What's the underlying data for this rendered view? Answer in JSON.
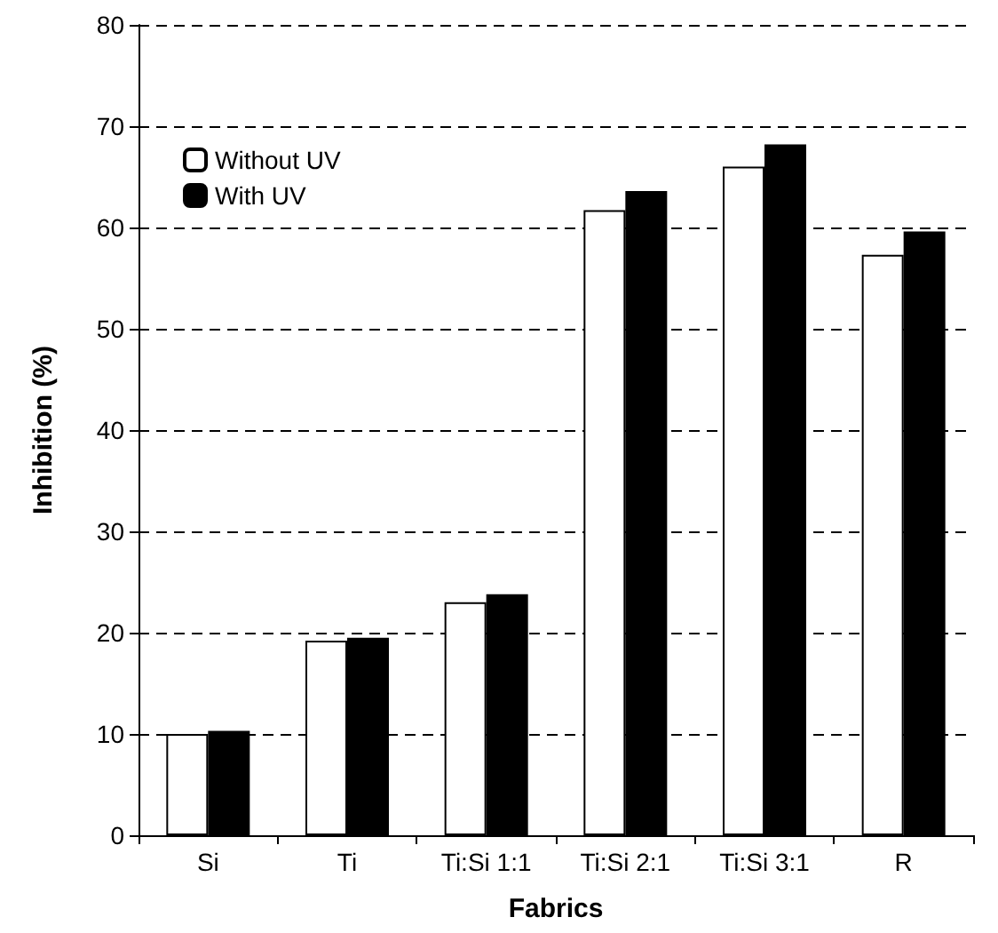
{
  "chart_data": {
    "type": "bar",
    "xlabel": "Fabrics",
    "ylabel": "Inhibition (%)",
    "categories": [
      "Si",
      "Ti",
      "Ti:Si 1:1",
      "Ti:Si 2:1",
      "Ti:Si 3:1",
      "R"
    ],
    "series": [
      {
        "name": "Without UV",
        "color": "#ffffff",
        "values": [
          10,
          19.2,
          23,
          61.7,
          66,
          57.3
        ]
      },
      {
        "name": "With UV",
        "color": "#000000",
        "values": [
          10.3,
          19.5,
          23.8,
          63.6,
          68.2,
          59.6
        ]
      }
    ],
    "ylim": [
      0,
      80
    ],
    "yticks": [
      0,
      10,
      20,
      30,
      40,
      50,
      60,
      70,
      80
    ],
    "grid": "y",
    "legend": "top left"
  }
}
